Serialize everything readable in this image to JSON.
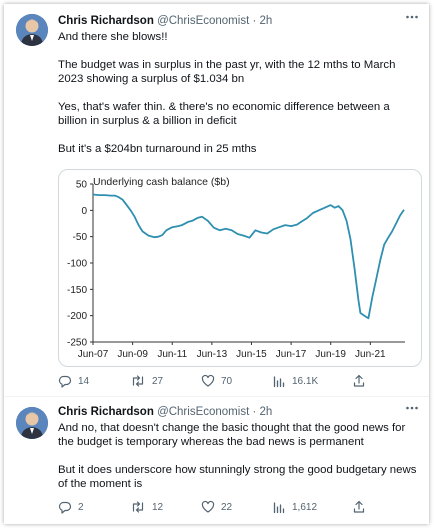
{
  "tweets": [
    {
      "name": "Chris Richardson",
      "handle": "@ChrisEconomist",
      "time": "2h",
      "paragraphs": [
        "And there she blows!!",
        "The budget was in surplus in the past yr, with the 12 mths to March 2023 showing a surplus of $1.034 bn",
        "Yes, that's wafer thin.  & there's no economic difference between a billion in surplus & a billion in deficit",
        "But it's a $204bn turnaround in 25 mths"
      ],
      "stats": {
        "replies": "14",
        "retweets": "27",
        "likes": "70",
        "views": "16.1K"
      }
    },
    {
      "name": "Chris Richardson",
      "handle": "@ChrisEconomist",
      "time": "2h",
      "paragraphs": [
        "And no, that doesn't change the basic thought that the good news for the budget is temporary whereas the bad news is permanent",
        "But it does underscore how stunningly strong the good budgetary news of the moment is"
      ],
      "stats": {
        "replies": "2",
        "retweets": "12",
        "likes": "22",
        "views": "1,612"
      }
    }
  ],
  "header_separator": " · ",
  "icons": [
    "avatar-photo",
    "more-options-icon",
    "reply-icon",
    "retweet-icon",
    "like-icon",
    "views-icon",
    "share-icon"
  ],
  "chart_data": {
    "type": "line",
    "title": "Underlying cash balance ($b)",
    "xlabel": "",
    "ylabel": "",
    "ylim": [
      -250,
      50
    ],
    "yticks": [
      50,
      0,
      -50,
      -100,
      -150,
      -200,
      -250
    ],
    "xlim": [
      2007.5,
      2023.25
    ],
    "xtick_labels": [
      "Jun-07",
      "Jun-09",
      "Jun-11",
      "Jun-13",
      "Jun-15",
      "Jun-17",
      "Jun-19",
      "Jun-21"
    ],
    "xtick_values": [
      2007.5,
      2009.5,
      2011.5,
      2013.5,
      2015.5,
      2017.5,
      2019.5,
      2021.5
    ],
    "grid": false,
    "color": "#2e8fb0",
    "series": [
      {
        "x": [
          2007.5,
          2007.8,
          2008.1,
          2008.4,
          2008.6,
          2008.8,
          2009.0,
          2009.2,
          2009.4,
          2009.6,
          2009.8,
          2010.0,
          2010.3,
          2010.6,
          2010.8,
          2011.0,
          2011.2,
          2011.5,
          2011.8,
          2012.0,
          2012.3,
          2012.5,
          2012.8,
          2013.0,
          2013.3,
          2013.6,
          2013.9,
          2014.2,
          2014.5,
          2014.8,
          2015.1,
          2015.4,
          2015.7,
          2016.0,
          2016.3,
          2016.6,
          2016.9,
          2017.2,
          2017.5,
          2017.8,
          2018.0,
          2018.3,
          2018.6,
          2018.9,
          2019.2,
          2019.5,
          2019.7,
          2019.9,
          2020.1,
          2020.3,
          2020.5,
          2020.7,
          2020.9,
          2021.0,
          2021.2,
          2021.4,
          2021.6,
          2021.8,
          2022.0,
          2022.2,
          2022.4,
          2022.6,
          2022.8,
          2023.0,
          2023.2
        ],
        "y": [
          30,
          29,
          29,
          28,
          28,
          25,
          20,
          10,
          0,
          -12,
          -28,
          -40,
          -48,
          -51,
          -50,
          -47,
          -38,
          -32,
          -30,
          -28,
          -22,
          -20,
          -14,
          -12,
          -20,
          -33,
          -38,
          -35,
          -38,
          -45,
          -48,
          -52,
          -38,
          -42,
          -44,
          -36,
          -32,
          -28,
          -30,
          -27,
          -22,
          -15,
          -5,
          0,
          5,
          10,
          5,
          8,
          0,
          -20,
          -55,
          -110,
          -170,
          -195,
          -200,
          -205,
          -165,
          -130,
          -95,
          -65,
          -52,
          -40,
          -25,
          -10,
          1
        ]
      }
    ]
  }
}
